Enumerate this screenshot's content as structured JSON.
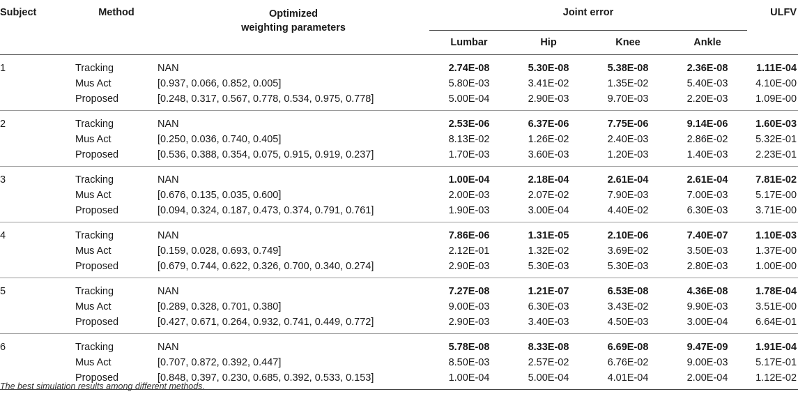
{
  "headers": {
    "subject": "Subject",
    "method": "Method",
    "params_line1": "Optimized",
    "params_line2": "weighting parameters",
    "joint_error": "Joint error",
    "ulfv": "ULFV",
    "lumbar": "Lumbar",
    "hip": "Hip",
    "knee": "Knee",
    "ankle": "Ankle"
  },
  "groups": [
    {
      "subject": "1",
      "rows": [
        {
          "method": "Tracking",
          "params": "NAN",
          "lumbar": "2.74E-08",
          "hip": "5.30E-08",
          "knee": "5.38E-08",
          "ankle": "2.36E-08",
          "ulfv": "1.11E-04",
          "best": true
        },
        {
          "method": "Mus Act",
          "params": "[0.937, 0.066, 0.852, 0.005]",
          "lumbar": "5.80E-03",
          "hip": "3.41E-02",
          "knee": "1.35E-02",
          "ankle": "5.40E-03",
          "ulfv": "4.10E-00",
          "best": false
        },
        {
          "method": "Proposed",
          "params": "[0.248, 0.317, 0.567, 0.778, 0.534, 0.975, 0.778]",
          "lumbar": "5.00E-04",
          "hip": "2.90E-03",
          "knee": "9.70E-03",
          "ankle": "2.20E-03",
          "ulfv": "1.09E-00",
          "best": false
        }
      ]
    },
    {
      "subject": "2",
      "rows": [
        {
          "method": "Tracking",
          "params": "NAN",
          "lumbar": "2.53E-06",
          "hip": "6.37E-06",
          "knee": "7.75E-06",
          "ankle": "9.14E-06",
          "ulfv": "1.60E-03",
          "best": true
        },
        {
          "method": "Mus Act",
          "params": "[0.250, 0.036, 0.740, 0.405]",
          "lumbar": "8.13E-02",
          "hip": "1.26E-02",
          "knee": "2.40E-03",
          "ankle": "2.86E-02",
          "ulfv": "5.32E-01",
          "best": false
        },
        {
          "method": "Proposed",
          "params": "[0.536, 0.388, 0.354, 0.075, 0.915, 0.919, 0.237]",
          "lumbar": "1.70E-03",
          "hip": "3.60E-03",
          "knee": "1.20E-03",
          "ankle": "1.40E-03",
          "ulfv": "2.23E-01",
          "best": false
        }
      ]
    },
    {
      "subject": "3",
      "rows": [
        {
          "method": "Tracking",
          "params": "NAN",
          "lumbar": "1.00E-04",
          "hip": "2.18E-04",
          "knee": "2.61E-04",
          "ankle": "2.61E-04",
          "ulfv": "7.81E-02",
          "best": true
        },
        {
          "method": "Mus Act",
          "params": "[0.676, 0.135, 0.035, 0.600]",
          "lumbar": "2.00E-03",
          "hip": "2.07E-02",
          "knee": "7.90E-03",
          "ankle": "7.00E-03",
          "ulfv": "5.17E-00",
          "best": false
        },
        {
          "method": "Proposed",
          "params": "[0.094, 0.324, 0.187, 0.473, 0.374, 0.791, 0.761]",
          "lumbar": "1.90E-03",
          "hip": "3.00E-04",
          "knee": "4.40E-02",
          "ankle": "6.30E-03",
          "ulfv": "3.71E-00",
          "best": false
        }
      ]
    },
    {
      "subject": "4",
      "rows": [
        {
          "method": "Tracking",
          "params": "NAN",
          "lumbar": "7.86E-06",
          "hip": "1.31E-05",
          "knee": "2.10E-06",
          "ankle": "7.40E-07",
          "ulfv": "1.10E-03",
          "best": true
        },
        {
          "method": "Mus Act",
          "params": "[0.159, 0.028, 0.693, 0.749]",
          "lumbar": "2.12E-01",
          "hip": "1.32E-02",
          "knee": "3.69E-02",
          "ankle": "3.50E-03",
          "ulfv": "1.37E-00",
          "best": false
        },
        {
          "method": "Proposed",
          "params": "[0.679, 0.744, 0.622, 0.326, 0.700, 0.340, 0.274]",
          "lumbar": "2.90E-03",
          "hip": "5.30E-03",
          "knee": "5.30E-03",
          "ankle": "2.80E-03",
          "ulfv": "1.00E-00",
          "best": false
        }
      ]
    },
    {
      "subject": "5",
      "rows": [
        {
          "method": "Tracking",
          "params": "NAN",
          "lumbar": "7.27E-08",
          "hip": "1.21E-07",
          "knee": "6.53E-08",
          "ankle": "4.36E-08",
          "ulfv": "1.78E-04",
          "best": true
        },
        {
          "method": "Mus Act",
          "params": "[0.289, 0.328, 0.701, 0.380]",
          "lumbar": "9.00E-03",
          "hip": "6.30E-03",
          "knee": "3.43E-02",
          "ankle": "9.90E-03",
          "ulfv": "3.51E-00",
          "best": false
        },
        {
          "method": "Proposed",
          "params": "[0.427, 0.671, 0.264, 0.932, 0.741, 0.449, 0.772]",
          "lumbar": "2.90E-03",
          "hip": "3.40E-03",
          "knee": "4.50E-03",
          "ankle": "3.00E-04",
          "ulfv": "6.64E-01",
          "best": false
        }
      ]
    },
    {
      "subject": "6",
      "rows": [
        {
          "method": "Tracking",
          "params": "NAN",
          "lumbar": "5.78E-08",
          "hip": "8.33E-08",
          "knee": "6.69E-08",
          "ankle": "9.47E-09",
          "ulfv": "1.91E-04",
          "best": true
        },
        {
          "method": "Mus Act",
          "params": "[0.707, 0.872, 0.392, 0.447]",
          "lumbar": "8.50E-03",
          "hip": "2.57E-02",
          "knee": "6.76E-02",
          "ankle": "9.00E-03",
          "ulfv": "5.17E-01",
          "best": false
        },
        {
          "method": "Proposed",
          "params": "[0.848, 0.397, 0.230, 0.685, 0.392, 0.533, 0.153]",
          "lumbar": "1.00E-04",
          "hip": "5.00E-04",
          "knee": "4.01E-04",
          "ankle": "2.00E-04",
          "ulfv": "1.12E-02",
          "best": false
        }
      ]
    }
  ],
  "footnote": "The best simulation results among different methods."
}
